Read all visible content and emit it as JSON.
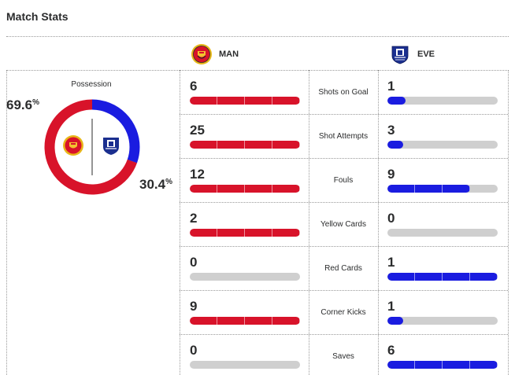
{
  "title": "Match Stats",
  "home": {
    "abbr": "MAN",
    "color": "#d8132a",
    "crest_icon": "manchester-united-crest-icon"
  },
  "away": {
    "abbr": "EVE",
    "color": "#1a1ce0",
    "crest_icon": "everton-crest-icon"
  },
  "possession": {
    "label": "Possession",
    "home_value": "69.6",
    "away_value": "30.4",
    "unit": "%"
  },
  "stats": [
    {
      "label": "Shots on Goal",
      "home": "6",
      "away": "1",
      "home_fill": 1.0,
      "away_fill": 0.167
    },
    {
      "label": "Shot Attempts",
      "home": "25",
      "away": "3",
      "home_fill": 1.0,
      "away_fill": 0.12
    },
    {
      "label": "Fouls",
      "home": "12",
      "away": "9",
      "home_fill": 1.0,
      "away_fill": 0.75
    },
    {
      "label": "Yellow Cards",
      "home": "2",
      "away": "0",
      "home_fill": 1.0,
      "away_fill": 0.0
    },
    {
      "label": "Red Cards",
      "home": "0",
      "away": "1",
      "home_fill": 0.0,
      "away_fill": 1.0
    },
    {
      "label": "Corner Kicks",
      "home": "9",
      "away": "1",
      "home_fill": 1.0,
      "away_fill": 0.111
    },
    {
      "label": "Saves",
      "home": "0",
      "away": "6",
      "home_fill": 0.0,
      "away_fill": 1.0
    }
  ]
}
